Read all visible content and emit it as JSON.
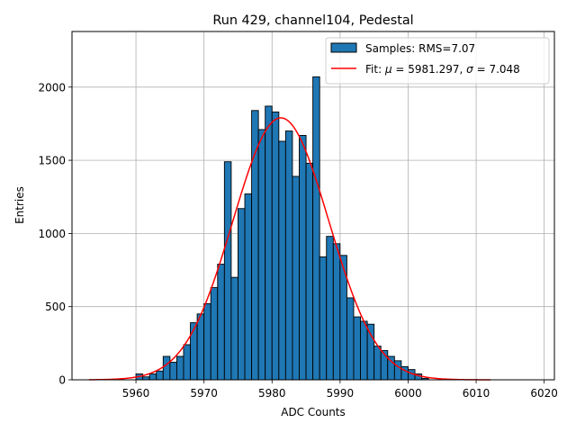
{
  "chart_data": {
    "type": "bar",
    "title": "Run 429, channel104, Pedestal",
    "xlabel": "ADC Counts",
    "ylabel": "Entries",
    "xlim": [
      5950.6,
      6021.5
    ],
    "ylim": [
      0,
      2380
    ],
    "xticks": [
      5960,
      5970,
      5980,
      5990,
      6000,
      6010,
      6020
    ],
    "yticks": [
      0,
      500,
      1000,
      1500,
      2000
    ],
    "grid": true,
    "legend_position": "top-right",
    "histogram": {
      "name": "Samples: RMS=7.07",
      "color": "#1f77b4",
      "edge_color": "#000000",
      "bin_edges": [
        5960,
        5961,
        5962,
        5963,
        5964,
        5965,
        5966,
        5967,
        5968,
        5969,
        5970,
        5971,
        5972,
        5973,
        5974,
        5975,
        5976,
        5977,
        5978,
        5979,
        5980,
        5981,
        5982,
        5983,
        5984,
        5985,
        5986,
        5987,
        5988,
        5989,
        5990,
        5991,
        5992,
        5993,
        5994,
        5995,
        5996,
        5997,
        5998,
        5999,
        6000,
        6001,
        6002,
        6003
      ],
      "counts": [
        40,
        20,
        40,
        60,
        160,
        120,
        160,
        240,
        390,
        450,
        520,
        630,
        790,
        1490,
        700,
        1170,
        1270,
        1840,
        1710,
        1870,
        1830,
        1630,
        1700,
        1390,
        1670,
        1480,
        2070,
        840,
        980,
        930,
        850,
        560,
        430,
        400,
        380,
        230,
        200,
        160,
        130,
        90,
        70,
        40,
        10
      ]
    },
    "fit": {
      "name": "Fit: $\\mu$ = 5981.297, $\\sigma$ = 7.048",
      "label_prefix": "Fit: ",
      "mu_symbol": "μ",
      "mu_value": " = 5981.297, ",
      "sigma_symbol": "σ",
      "sigma_value": " = 7.048",
      "color": "#ff0000",
      "mu": 5981.297,
      "sigma": 7.048,
      "amplitude": 1790,
      "x_range": [
        5953.1,
        6012.1
      ]
    }
  }
}
